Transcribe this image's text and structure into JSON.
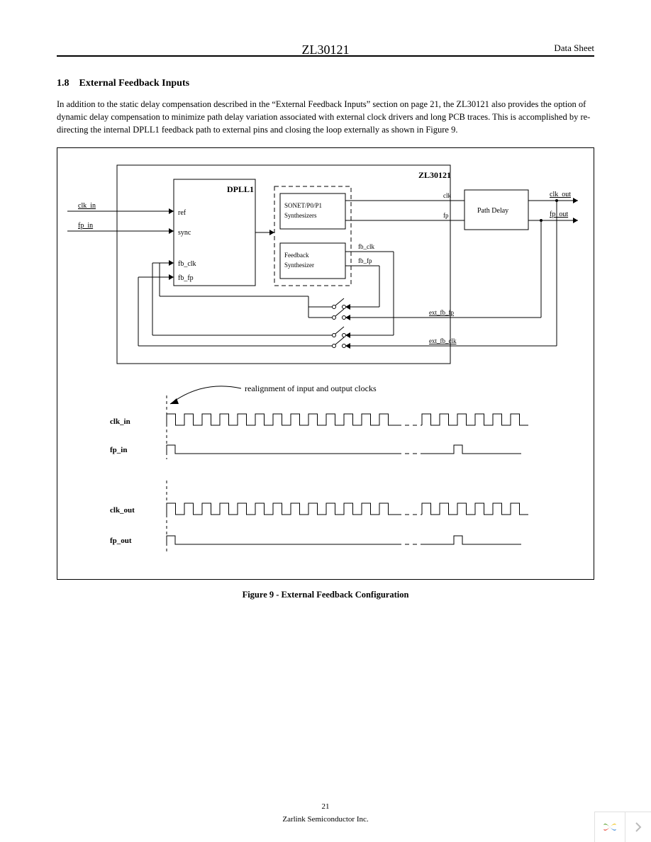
{
  "header": {
    "center": "ZL30121",
    "right": "Data Sheet"
  },
  "section": {
    "number": "1.8",
    "title": "External Feedback Inputs"
  },
  "paragraph": "In addition to the static delay compensation described in the “External Feedback Inputs” section on page 21, the ZL30121 also provides the option of dynamic delay compensation to minimize path delay variation associated with external clock drivers and long PCB traces. This is accomplished by re-directing the internal DPLL1 feedback path to external pins and closing the loop externally as shown in Figure 9.",
  "diagram": {
    "chip_label": "ZL30121",
    "dpll_label": "DPLL1",
    "dpll_ports": {
      "ref": "ref",
      "sync": "sync",
      "fb_clk": "fb_clk",
      "fb_fp": "fb_fp"
    },
    "synth1": {
      "line1": "SONET/P0/P1",
      "line2": "Synthesizers"
    },
    "synth2": {
      "line1": "Feedback",
      "line2": "Synthesizer"
    },
    "pathdelay": "Path Delay",
    "inputs": {
      "clk_in": "clk_in",
      "fp_in": "fp_in"
    },
    "outputs": {
      "clk_out": "clk_out",
      "fp_out": "fp_out"
    },
    "mid_signals": {
      "clk": "clk",
      "fp": "fp",
      "fb_clk": "fb_clk",
      "fb_fp": "fb_fp"
    },
    "ext_signals": {
      "ext_fb_fp": "ext_fb_fp",
      "ext_fb_clk": "ext_fb_clk"
    }
  },
  "timing": {
    "annotation": "realignment of input and output clocks",
    "labels": {
      "clk_in": "clk_in",
      "fp_in": "fp_in",
      "clk_out": "clk_out",
      "fp_out": "fp_out"
    }
  },
  "figure_caption": "Figure 9 - External Feedback Configuration",
  "page_number": "21",
  "footer": "Zarlink Semiconductor Inc.",
  "style": {
    "line_color": "#000000",
    "dash_pattern": "6,4",
    "font_small": 10,
    "font_label": 11,
    "font_bold": 12
  }
}
